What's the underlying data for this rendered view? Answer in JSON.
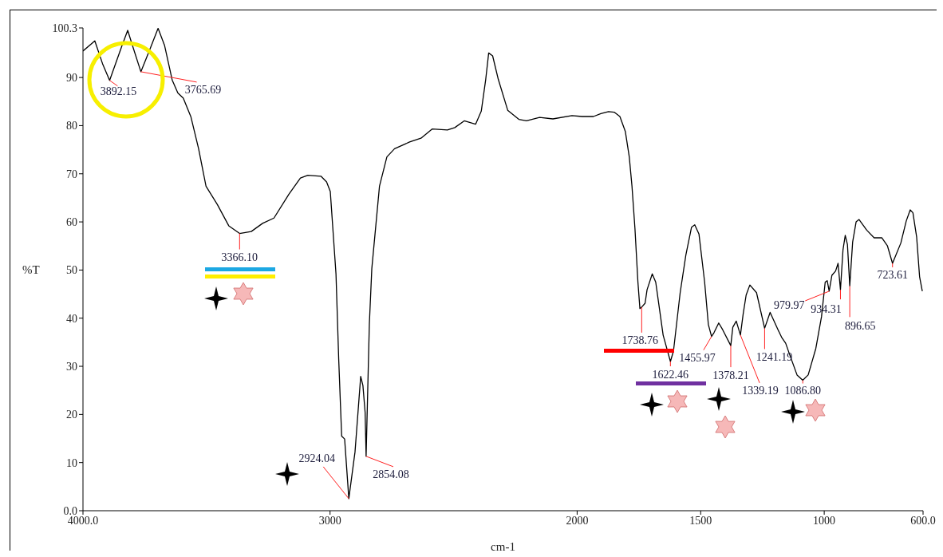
{
  "chart_data": {
    "type": "line",
    "xlabel": "cm-1",
    "ylabel": "%T",
    "color": "#000000",
    "x": [
      4000,
      3952,
      3921,
      3892.15,
      3845,
      3819,
      3800,
      3765.69,
      3731,
      3696,
      3670,
      3639,
      3616,
      3594,
      3563,
      3532,
      3502,
      3456,
      3410,
      3366.1,
      3319,
      3273,
      3227,
      3166,
      3120,
      3090,
      3037,
      3014,
      2999,
      2976,
      2965,
      2953,
      2941,
      2924.04,
      2899,
      2876,
      2867,
      2858,
      2854.08,
      2841,
      2831,
      2800,
      2770,
      2739,
      2678,
      2632,
      2587,
      2525,
      2495,
      2457,
      2411,
      2388,
      2370,
      2358,
      2342,
      2319,
      2281,
      2236,
      2205,
      2152,
      2098,
      2021,
      1980,
      1934,
      1904,
      1873,
      1850,
      1827,
      1805,
      1789,
      1778,
      1766,
      1754,
      1746,
      1738.76,
      1725,
      1717,
      1696,
      1682,
      1667,
      1652,
      1622.46,
      1610,
      1583,
      1560,
      1537,
      1524,
      1507,
      1484,
      1469,
      1455.97,
      1446,
      1427,
      1411,
      1378.21,
      1370,
      1356,
      1339.19,
      1328,
      1316,
      1301,
      1274,
      1241.19,
      1219,
      1187,
      1171,
      1156,
      1141,
      1110,
      1086.8,
      1065,
      1034,
      1011,
      996,
      988,
      979.97,
      969,
      954,
      944,
      934.31,
      924,
      915,
      906,
      896.65,
      885,
      871,
      859,
      828,
      798,
      767,
      744,
      723.61,
      690,
      668,
      652,
      641,
      626,
      614,
      603
    ],
    "values": [
      95.5,
      97.6,
      92.9,
      89.4,
      96.2,
      99.8,
      96.7,
      91.2,
      95.6,
      100.2,
      96.7,
      89.5,
      86.8,
      85.7,
      81.8,
      75.2,
      67.4,
      63.6,
      59.2,
      57.6,
      58.0,
      59.7,
      60.8,
      65.8,
      69.1,
      69.7,
      69.5,
      68.3,
      66.3,
      49.2,
      31.5,
      15.5,
      14.9,
      2.5,
      12.2,
      27.9,
      26.0,
      20.4,
      11.3,
      38.7,
      50.3,
      67.4,
      73.5,
      75.2,
      76.6,
      77.4,
      79.3,
      79.1,
      79.6,
      81.0,
      80.3,
      83.0,
      89.6,
      95.1,
      94.5,
      89.6,
      83.2,
      81.3,
      81.0,
      81.7,
      81.4,
      82.1,
      81.9,
      81.9,
      82.5,
      82.9,
      82.8,
      81.9,
      78.8,
      73.5,
      67.4,
      58.6,
      47.5,
      42.0,
      42.3,
      43.1,
      45.9,
      49.2,
      47.5,
      42.0,
      36.5,
      31.0,
      33.2,
      45.3,
      53.1,
      58.9,
      59.4,
      57.5,
      47.5,
      38.7,
      36.2,
      37.0,
      39.0,
      37.6,
      34.3,
      38.1,
      39.4,
      36.5,
      40.9,
      44.8,
      46.9,
      45.3,
      37.9,
      41.2,
      37.6,
      35.9,
      34.8,
      32.6,
      28.2,
      27.1,
      28.2,
      33.7,
      40.3,
      47.5,
      47.8,
      45.6,
      48.9,
      49.8,
      51.4,
      45.9,
      54.2,
      57.2,
      55.3,
      46.7,
      55.8,
      60.0,
      60.5,
      58.3,
      56.7,
      56.7,
      55.0,
      51.4,
      55.6,
      60.2,
      62.5,
      61.9,
      56.9,
      48.6,
      45.6
    ],
    "xlim": [
      4000,
      600
    ],
    "xticks": [
      {
        "value": 4000,
        "label": "4000.0"
      },
      3000,
      2000,
      1500,
      1000,
      {
        "value": 600,
        "label": "600.0"
      }
    ],
    "ylim": [
      0,
      100.3
    ],
    "yticks": [
      {
        "value": 0,
        "label": "0.0"
      },
      10,
      20,
      30,
      40,
      50,
      60,
      70,
      80,
      90,
      100.3
    ],
    "annotations": [
      {
        "text": "3892.15",
        "x": 3892.15,
        "y": 89.4
      },
      {
        "text": "3765.69",
        "x": 3765.69,
        "y": 91.2
      },
      {
        "text": "3366.10",
        "x": 3366.1,
        "y": 57.6
      },
      {
        "text": "2924.04",
        "x": 2924.04,
        "y": 2.5
      },
      {
        "text": "2854.08",
        "x": 2854.08,
        "y": 11.3
      },
      {
        "text": "1738.76",
        "x": 1738.76,
        "y": 42.3
      },
      {
        "text": "1622.46",
        "x": 1622.46,
        "y": 31.0
      },
      {
        "text": "1455.97",
        "x": 1455.97,
        "y": 36.2
      },
      {
        "text": "1378.21",
        "x": 1378.21,
        "y": 34.3
      },
      {
        "text": "1339.19",
        "x": 1339.19,
        "y": 36.5
      },
      {
        "text": "1241.19",
        "x": 1241.19,
        "y": 37.9
      },
      {
        "text": "1086.80",
        "x": 1086.8,
        "y": 27.1
      },
      {
        "text": "979.97",
        "x": 979.97,
        "y": 45.6
      },
      {
        "text": "934.31",
        "x": 934.31,
        "y": 45.9
      },
      {
        "text": "896.65",
        "x": 896.65,
        "y": 46.7
      },
      {
        "text": "723.61",
        "x": 723.61,
        "y": 51.4
      }
    ]
  }
}
